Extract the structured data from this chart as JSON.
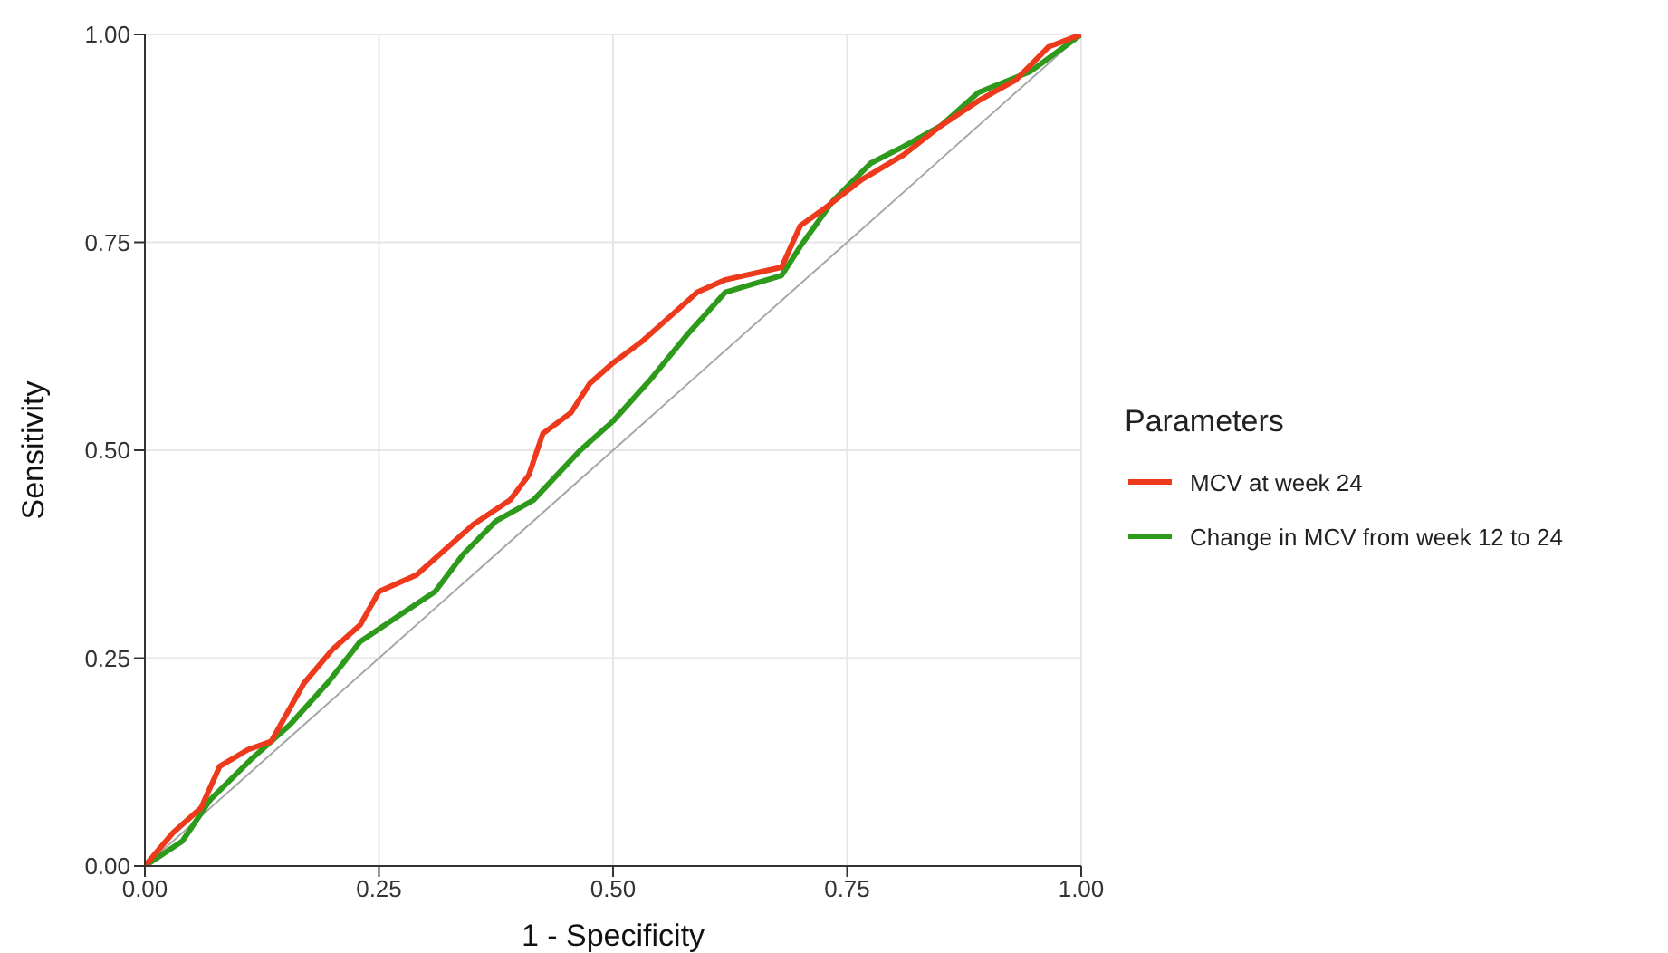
{
  "chart_data": {
    "type": "line",
    "xlabel": "1 - Specificity",
    "ylabel": "Sensitivity",
    "legend_title": "Parameters",
    "legend": "right",
    "grid": true,
    "marker": "none",
    "line_style": "solid",
    "xlim": [
      0,
      1
    ],
    "ylim": [
      0,
      1
    ],
    "xticks": [
      {
        "value": 0,
        "label": "0.00"
      },
      {
        "value": 0.25,
        "label": "0.25"
      },
      {
        "value": 0.5,
        "label": "0.50"
      },
      {
        "value": 0.75,
        "label": "0.75"
      },
      {
        "value": 1,
        "label": "1.00"
      }
    ],
    "yticks": [
      {
        "value": 0,
        "label": "0.00"
      },
      {
        "value": 0.25,
        "label": "0.25"
      },
      {
        "value": 0.5,
        "label": "0.50"
      },
      {
        "value": 0.75,
        "label": "0.75"
      },
      {
        "value": 1,
        "label": "1.00"
      }
    ],
    "series": [
      {
        "name": "MCV at week 24",
        "color": "#ee3a1c",
        "x": [
          0,
          0.03,
          0.06,
          0.08,
          0.11,
          0.135,
          0.155,
          0.17,
          0.2,
          0.23,
          0.25,
          0.29,
          0.32,
          0.35,
          0.39,
          0.41,
          0.425,
          0.455,
          0.475,
          0.5,
          0.53,
          0.56,
          0.59,
          0.62,
          0.68,
          0.7,
          0.725,
          0.765,
          0.81,
          0.85,
          0.89,
          0.93,
          0.965,
          1
        ],
        "values": [
          0,
          0.04,
          0.07,
          0.12,
          0.14,
          0.15,
          0.19,
          0.22,
          0.26,
          0.29,
          0.33,
          0.35,
          0.38,
          0.41,
          0.44,
          0.47,
          0.52,
          0.545,
          0.58,
          0.605,
          0.63,
          0.66,
          0.69,
          0.705,
          0.72,
          0.77,
          0.79,
          0.825,
          0.855,
          0.89,
          0.92,
          0.945,
          0.985,
          1
        ]
      },
      {
        "name": "Change in MCV from week 12 to 24",
        "color": "#2e9a1c",
        "x": [
          0,
          0.04,
          0.07,
          0.115,
          0.155,
          0.195,
          0.23,
          0.27,
          0.31,
          0.34,
          0.375,
          0.415,
          0.465,
          0.5,
          0.54,
          0.58,
          0.62,
          0.68,
          0.7,
          0.735,
          0.775,
          0.81,
          0.85,
          0.89,
          0.945,
          1
        ],
        "values": [
          0,
          0.03,
          0.08,
          0.13,
          0.17,
          0.22,
          0.27,
          0.3,
          0.33,
          0.375,
          0.415,
          0.44,
          0.5,
          0.535,
          0.585,
          0.64,
          0.69,
          0.71,
          0.745,
          0.8,
          0.845,
          0.865,
          0.89,
          0.93,
          0.955,
          1
        ]
      },
      {
        "color": "#a6a6a6",
        "x": [
          0,
          1
        ],
        "values": [
          0,
          1
        ]
      }
    ]
  }
}
